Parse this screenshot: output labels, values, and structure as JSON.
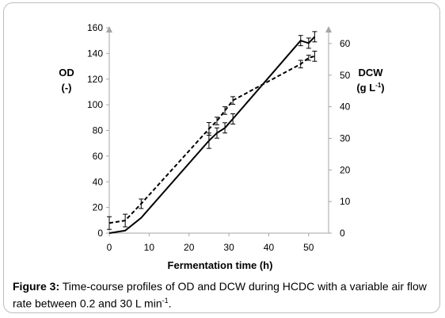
{
  "chart_data": {
    "type": "line",
    "xlabel": "Fermentation time (h)",
    "ylabel": "OD",
    "ylabel_unit": "(-)",
    "y2label": "DCW",
    "y2label_unit_pre": "(g L",
    "y2label_unit_sup": "-1",
    "y2label_unit_post": ")",
    "xlim": [
      0,
      55
    ],
    "ylim": [
      0,
      160
    ],
    "y2lim": [
      0,
      65
    ],
    "x_ticks": [
      0,
      10,
      20,
      30,
      40,
      50
    ],
    "y_ticks": [
      0,
      20,
      40,
      60,
      80,
      100,
      120,
      140,
      160
    ],
    "y2_ticks": [
      0,
      10,
      20,
      30,
      40,
      50,
      60
    ],
    "grid": false,
    "series": [
      {
        "style": "solid",
        "axis": "left",
        "x": [
          0,
          4,
          8,
          25,
          27,
          29,
          31,
          48,
          50,
          51.5
        ],
        "y": [
          0,
          2,
          12,
          72,
          78,
          82,
          89,
          150,
          148,
          153
        ],
        "err": [
          0,
          0,
          0,
          6,
          4,
          4,
          4,
          4,
          4,
          4
        ]
      },
      {
        "style": "dashed",
        "axis": "right",
        "x": [
          0,
          4,
          8,
          25,
          27,
          29,
          31,
          48,
          50,
          51.5
        ],
        "y": [
          3.2,
          4.0,
          9.3,
          33.0,
          35.5,
          38.8,
          42.0,
          53.5,
          55.5,
          56.0
        ],
        "err": [
          2.0,
          2.0,
          1.5,
          2.0,
          1.2,
          1.2,
          1.2,
          1.2,
          0.8,
          1.6
        ]
      }
    ]
  },
  "caption": {
    "label": "Figure 3:",
    "text_pre": " Time-course profiles of OD and DCW during HCDC with a variable air flow rate between 0.2 and 30 L min",
    "text_sup": "-1",
    "text_post": "."
  }
}
